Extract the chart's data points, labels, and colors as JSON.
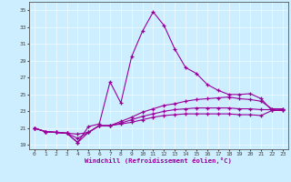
{
  "xlabel": "Windchill (Refroidissement éolien,°C)",
  "background_color": "#cceeff",
  "line_color": "#990099",
  "grid_color": "#aaddcc",
  "xlim": [
    -0.5,
    23.5
  ],
  "ylim": [
    18.5,
    36.0
  ],
  "xticks": [
    0,
    1,
    2,
    3,
    4,
    5,
    6,
    7,
    8,
    9,
    10,
    11,
    12,
    13,
    14,
    15,
    16,
    17,
    18,
    19,
    20,
    21,
    22,
    23
  ],
  "yticks": [
    19,
    21,
    23,
    25,
    27,
    29,
    31,
    33,
    35
  ],
  "lines": [
    [
      21.0,
      20.6,
      20.5,
      20.4,
      19.3,
      21.2,
      21.5,
      26.5,
      24.0,
      29.5,
      32.5,
      34.8,
      33.2,
      30.4,
      28.2,
      27.5,
      26.2,
      25.5,
      25.0,
      25.0,
      25.1,
      24.5,
      23.1,
      23.2
    ],
    [
      21.0,
      20.6,
      20.5,
      20.4,
      20.3,
      20.5,
      21.3,
      21.3,
      21.8,
      22.3,
      22.9,
      23.3,
      23.7,
      23.9,
      24.2,
      24.4,
      24.5,
      24.6,
      24.7,
      24.5,
      24.4,
      24.2,
      23.3,
      23.3
    ],
    [
      21.0,
      20.6,
      20.5,
      20.4,
      19.8,
      20.5,
      21.3,
      21.3,
      21.6,
      22.0,
      22.4,
      22.7,
      23.0,
      23.2,
      23.3,
      23.4,
      23.4,
      23.4,
      23.4,
      23.3,
      23.3,
      23.2,
      23.2,
      23.1
    ],
    [
      21.0,
      20.6,
      20.5,
      20.4,
      19.3,
      20.5,
      21.3,
      21.3,
      21.5,
      21.7,
      22.0,
      22.3,
      22.5,
      22.6,
      22.7,
      22.7,
      22.7,
      22.7,
      22.7,
      22.6,
      22.6,
      22.5,
      23.1,
      23.1
    ]
  ]
}
